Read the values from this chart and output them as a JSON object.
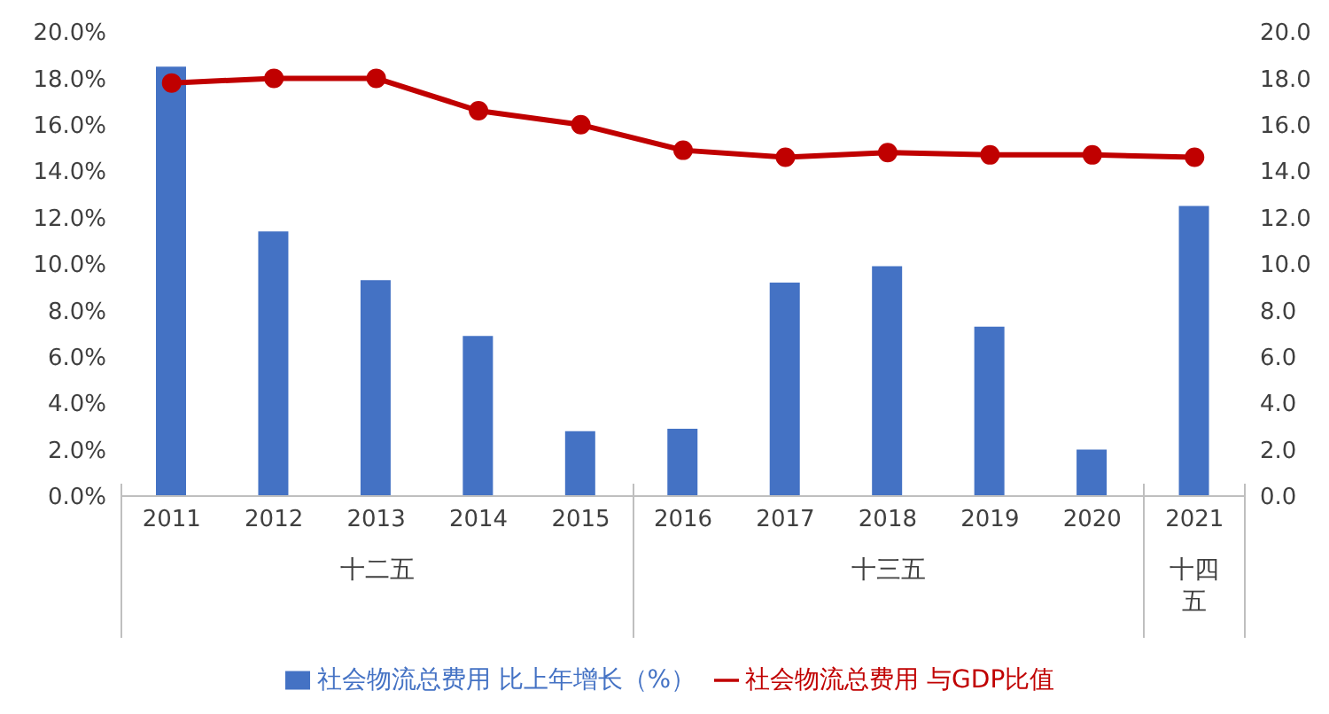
{
  "chart_data": {
    "type": "bar",
    "categories": [
      "2011",
      "2012",
      "2013",
      "2014",
      "2015",
      "2016",
      "2017",
      "2018",
      "2019",
      "2020",
      "2021"
    ],
    "series": [
      {
        "name": "社会物流总费用 比上年增长（%）",
        "color": "#4472c4",
        "values": [
          18.5,
          11.4,
          9.3,
          6.9,
          2.8,
          2.9,
          9.2,
          9.9,
          7.3,
          2.0,
          12.5
        ]
      },
      {
        "name": "社会物流总费用 与GDP比值",
        "type": "line",
        "axis": "y2",
        "color": "#c00000",
        "marker": "circle",
        "values": [
          17.8,
          18.0,
          18.0,
          16.6,
          16.0,
          14.9,
          14.6,
          14.8,
          14.7,
          14.7,
          14.6
        ]
      }
    ],
    "ylim": [
      0,
      20
    ],
    "yticks": [
      {
        "value": 0,
        "label": "0.0%"
      },
      {
        "value": 2,
        "label": "2.0%"
      },
      {
        "value": 4,
        "label": "4.0%"
      },
      {
        "value": 6,
        "label": "6.0%"
      },
      {
        "value": 8,
        "label": "8.0%"
      },
      {
        "value": 10,
        "label": "10.0%"
      },
      {
        "value": 12,
        "label": "12.0%"
      },
      {
        "value": 14,
        "label": "14.0%"
      },
      {
        "value": 16,
        "label": "16.0%"
      },
      {
        "value": 18,
        "label": "18.0%"
      },
      {
        "value": 20,
        "label": "20.0%"
      }
    ],
    "y2lim": [
      0,
      20
    ],
    "y2ticks": [
      {
        "value": 0,
        "label": "0.0"
      },
      {
        "value": 2,
        "label": "2.0"
      },
      {
        "value": 4,
        "label": "4.0"
      },
      {
        "value": 6,
        "label": "6.0"
      },
      {
        "value": 8,
        "label": "8.0"
      },
      {
        "value": 10,
        "label": "10.0"
      },
      {
        "value": 12,
        "label": "12.0"
      },
      {
        "value": 14,
        "label": "14.0"
      },
      {
        "value": 16,
        "label": "16.0"
      },
      {
        "value": 18,
        "label": "18.0"
      },
      {
        "value": 20,
        "label": "20.0"
      }
    ],
    "annotations": [
      "十二五",
      "十三五",
      "十四五"
    ],
    "legend": "bottom"
  }
}
